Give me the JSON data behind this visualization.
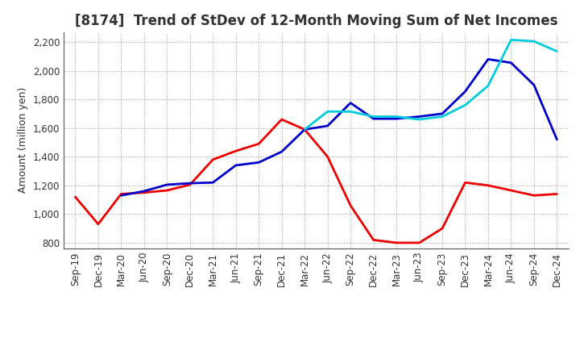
{
  "title": "[8174]  Trend of StDev of 12-Month Moving Sum of Net Incomes",
  "ylabel": "Amount (million yen)",
  "x_labels": [
    "Sep-19",
    "Dec-19",
    "Mar-20",
    "Jun-20",
    "Sep-20",
    "Dec-20",
    "Mar-21",
    "Jun-21",
    "Sep-21",
    "Dec-21",
    "Mar-22",
    "Jun-22",
    "Sep-22",
    "Dec-22",
    "Mar-23",
    "Jun-23",
    "Sep-23",
    "Dec-23",
    "Mar-24",
    "Jun-24",
    "Sep-24",
    "Dec-24"
  ],
  "series": {
    "3 Years": {
      "color": "#EE0000",
      "values": [
        1120,
        930,
        1140,
        1150,
        1165,
        1205,
        1380,
        1440,
        1490,
        1660,
        1590,
        1400,
        1060,
        820,
        800,
        800,
        900,
        1220,
        1200,
        1165,
        1130,
        1140
      ]
    },
    "5 Years": {
      "color": "#0000CC",
      "values": [
        null,
        null,
        1130,
        1160,
        1205,
        1215,
        1220,
        1340,
        1360,
        1435,
        1590,
        1615,
        1775,
        1665,
        1665,
        1680,
        1700,
        1855,
        2080,
        2055,
        1900,
        1520
      ]
    },
    "7 Years": {
      "color": "#00CCDD",
      "values": [
        null,
        null,
        null,
        null,
        null,
        null,
        null,
        null,
        null,
        null,
        1590,
        1715,
        1715,
        1680,
        1680,
        1660,
        1680,
        1760,
        1895,
        2215,
        2205,
        2135
      ]
    },
    "10 Years": {
      "color": "#006400",
      "values": [
        null,
        null,
        null,
        null,
        null,
        null,
        null,
        null,
        null,
        null,
        null,
        null,
        null,
        null,
        null,
        null,
        null,
        null,
        null,
        null,
        null,
        null
      ]
    }
  },
  "ylim": [
    760,
    2270
  ],
  "yticks": [
    800,
    1000,
    1200,
    1400,
    1600,
    1800,
    2000,
    2200
  ],
  "background_color": "#FFFFFF",
  "grid_color": "#999999",
  "title_fontsize": 12,
  "title_color": "#333333",
  "axis_label_fontsize": 8.5,
  "ylabel_fontsize": 9
}
